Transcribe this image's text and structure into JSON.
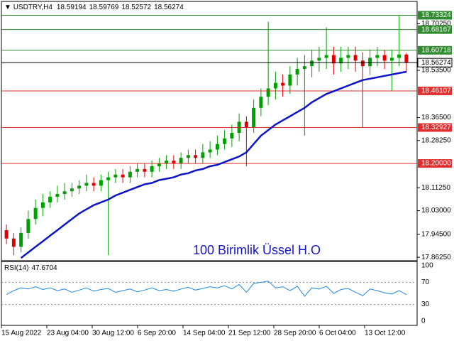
{
  "chart_data": {
    "type": "candlestick",
    "symbol": "USDTRY,H4",
    "annotation": "100 Birimlik Üssel H.O",
    "ylim": [
      17.85,
      18.783
    ],
    "yticks": [
      {
        "value": 18.7025,
        "label": "18.70250"
      },
      {
        "value": 18.535,
        "label": "18.53500"
      },
      {
        "value": 18.365,
        "label": "18.36500"
      },
      {
        "value": 18.2825,
        "label": "18.28250"
      },
      {
        "value": 18.1125,
        "label": "18.11250"
      },
      {
        "value": 18.03,
        "label": "18.03000"
      },
      {
        "value": 17.945,
        "label": "17.94500"
      },
      {
        "value": 17.8625,
        "label": "17.86250"
      }
    ],
    "levels": [
      {
        "value": 18.73324,
        "color": "#2e8b2e"
      },
      {
        "value": 18.68167,
        "color": "#2e8b2e"
      },
      {
        "value": 18.60718,
        "color": "#2e8b2e"
      },
      {
        "value": 18.46107,
        "color": "#e03030"
      },
      {
        "value": 18.32927,
        "color": "#e03030"
      },
      {
        "value": 18.2,
        "label": "18.20000",
        "color": "#e03030"
      }
    ],
    "up_color": "#00a000",
    "down_color": "#e00000",
    "open": [
      17.96,
      17.93,
      17.9,
      17.95,
      18.0,
      18.04,
      18.06,
      18.08,
      18.09,
      18.1,
      18.11,
      18.12,
      18.13,
      18.12,
      18.14,
      18.15,
      18.16,
      18.15,
      18.17,
      18.18,
      18.17,
      18.19,
      18.2,
      18.21,
      18.2,
      18.22,
      18.23,
      18.22,
      18.24,
      18.25,
      18.27,
      18.29,
      18.31,
      18.35,
      18.33,
      18.4,
      18.44,
      18.47,
      18.49,
      18.48,
      18.52,
      18.54,
      18.55,
      18.57,
      18.58,
      18.59,
      18.56,
      18.58,
      18.59,
      18.57,
      18.55,
      18.58,
      18.59,
      18.57,
      18.58,
      18.59194
    ],
    "high": [
      17.98,
      17.95,
      17.97,
      18.03,
      18.07,
      18.09,
      18.1,
      18.12,
      18.13,
      18.13,
      18.14,
      18.16,
      18.15,
      18.16,
      18.17,
      18.18,
      18.18,
      18.19,
      18.2,
      18.2,
      18.21,
      18.22,
      18.23,
      18.23,
      18.24,
      18.25,
      18.25,
      18.27,
      18.28,
      18.3,
      18.32,
      18.34,
      18.38,
      18.37,
      18.43,
      18.47,
      18.71,
      18.53,
      18.52,
      18.55,
      18.58,
      18.59,
      18.61,
      18.62,
      18.69,
      18.62,
      18.62,
      18.62,
      18.62,
      18.6,
      18.61,
      18.62,
      18.61,
      18.61,
      18.73324,
      18.59769
    ],
    "low": [
      17.91,
      17.87,
      17.88,
      17.93,
      17.98,
      18.01,
      18.04,
      18.06,
      18.07,
      18.08,
      18.09,
      18.1,
      18.1,
      18.1,
      17.87,
      18.13,
      18.13,
      18.13,
      18.15,
      18.15,
      18.15,
      18.17,
      18.18,
      18.18,
      18.18,
      18.2,
      18.2,
      18.2,
      18.22,
      18.23,
      18.25,
      18.26,
      18.28,
      18.19,
      18.31,
      18.37,
      18.41,
      18.43,
      18.44,
      18.45,
      18.48,
      18.3,
      18.51,
      18.53,
      18.54,
      18.52,
      18.53,
      18.54,
      18.53,
      18.33,
      18.52,
      18.55,
      18.54,
      18.46,
      18.55,
      18.52572
    ],
    "close": [
      17.93,
      17.9,
      17.95,
      18.0,
      18.04,
      18.06,
      18.08,
      18.09,
      18.1,
      18.11,
      18.12,
      18.13,
      18.12,
      18.14,
      18.15,
      18.16,
      18.15,
      18.17,
      18.18,
      18.17,
      18.19,
      18.2,
      18.21,
      18.2,
      18.22,
      18.23,
      18.22,
      18.24,
      18.25,
      18.27,
      18.29,
      18.31,
      18.35,
      18.33,
      18.4,
      18.44,
      18.47,
      18.49,
      18.48,
      18.52,
      18.54,
      18.55,
      18.57,
      18.58,
      18.59,
      18.56,
      18.58,
      18.59,
      18.57,
      18.55,
      18.58,
      18.59,
      18.57,
      18.58,
      18.59194,
      18.56274
    ],
    "ma": {
      "color": "#0a14c8",
      "values": [
        null,
        null,
        17.86,
        17.88,
        17.9,
        17.92,
        17.94,
        17.96,
        17.98,
        18.0,
        18.02,
        18.035,
        18.05,
        18.06,
        18.07,
        18.085,
        18.095,
        18.105,
        18.115,
        18.125,
        18.13,
        18.14,
        18.145,
        18.15,
        18.16,
        18.165,
        18.175,
        18.18,
        18.19,
        18.195,
        18.205,
        18.215,
        18.225,
        18.24,
        18.27,
        18.3,
        18.32,
        18.34,
        18.355,
        18.37,
        18.385,
        18.4,
        18.42,
        18.435,
        18.45,
        18.46,
        18.47,
        18.48,
        18.49,
        18.5,
        18.505,
        18.51,
        18.515,
        18.52,
        18.525,
        18.53
      ]
    },
    "x_labels": [
      "15 Aug 2022",
      "23 Aug 04:00",
      "30 Aug 12:00",
      "6 Sep 20:00",
      "14 Sep 04:00",
      "21 Sep 12:00",
      "28 Sep 20:00",
      "6 Oct 04:00",
      "13 Oct 12:00"
    ],
    "rsi": {
      "name": "RSI(14)",
      "ylim": [
        0,
        100
      ],
      "yticks": [
        100,
        70,
        30,
        0
      ],
      "color": "#1e88e5",
      "values": [
        48,
        55,
        60,
        58,
        62,
        57,
        60,
        55,
        58,
        52,
        56,
        60,
        54,
        57,
        59,
        52,
        55,
        58,
        53,
        56,
        60,
        55,
        57,
        54,
        58,
        61,
        56,
        59,
        62,
        60,
        64,
        58,
        66,
        52,
        68,
        70,
        72,
        60,
        62,
        55,
        63,
        45,
        60,
        58,
        63,
        50,
        57,
        59,
        52,
        46,
        58,
        55,
        51,
        49,
        55,
        47.6704
      ]
    }
  }
}
